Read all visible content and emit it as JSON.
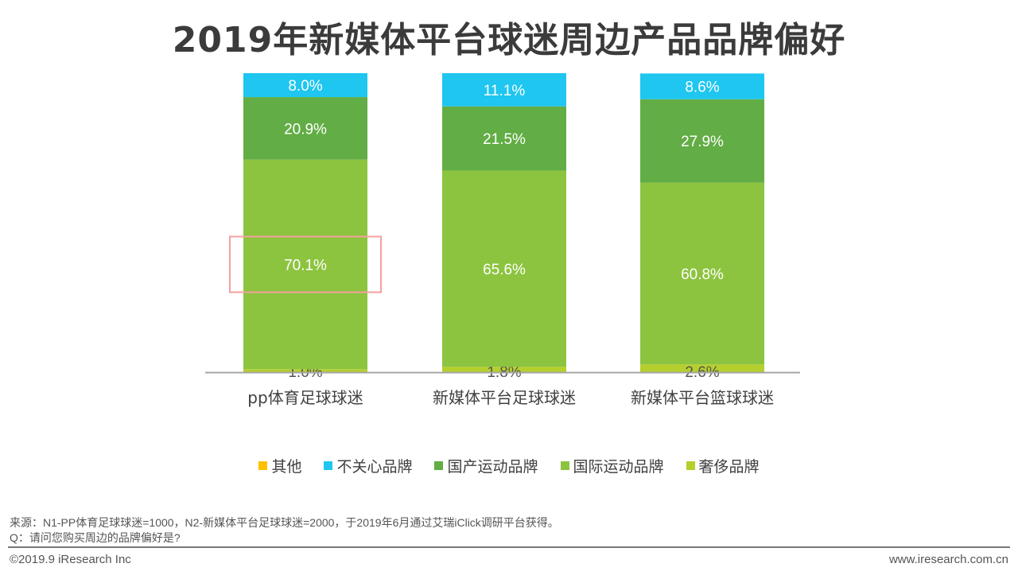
{
  "title": "2019年新媒体平台球迷周边产品品牌偏好",
  "chart_data": {
    "type": "bar",
    "stacked": true,
    "categories": [
      "pp体育足球球迷",
      "新媒体平台足球球迷",
      "新媒体平台篮球球迷"
    ],
    "series": [
      {
        "name": "其他",
        "color": "#ffc000",
        "values": [
          0,
          0,
          0
        ]
      },
      {
        "name": "不关心品牌",
        "color": "#1ec6f0",
        "values": [
          8.0,
          11.1,
          8.6
        ]
      },
      {
        "name": "国产运动品牌",
        "color": "#62ad45",
        "values": [
          20.9,
          21.5,
          27.9
        ]
      },
      {
        "name": "国际运动品牌",
        "color": "#8cc43f",
        "values": [
          70.1,
          65.6,
          60.8
        ]
      },
      {
        "name": "奢侈品牌",
        "color": "#b5cf2d",
        "values": [
          1.0,
          1.8,
          2.6
        ]
      }
    ],
    "data_labels": {
      "不关心品牌": [
        "8.0%",
        "11.1%",
        "8.6%"
      ],
      "国产运动品牌": [
        "20.9%",
        "21.5%",
        "27.9%"
      ],
      "国际运动品牌": [
        "70.1%",
        "65.6%",
        "60.8%"
      ],
      "奢侈品牌": [
        "1.0%",
        "1.8%",
        "2.6%"
      ]
    },
    "ylim": [
      0,
      100
    ],
    "grid": false,
    "legend_position": "bottom",
    "highlight": {
      "category": "pp体育足球球迷",
      "series": "国际运动品牌",
      "color": "#f4a0a0"
    }
  },
  "footer": {
    "source": "来源：N1-PP体育足球球迷=1000，N2-新媒体平台足球球迷=2000，于2019年6月通过艾瑞iClick调研平台获得。",
    "question": "Q：请问您购买周边的品牌偏好是?",
    "copyright": "©2019.9 iResearch Inc",
    "website": "www.iresearch.com.cn"
  }
}
